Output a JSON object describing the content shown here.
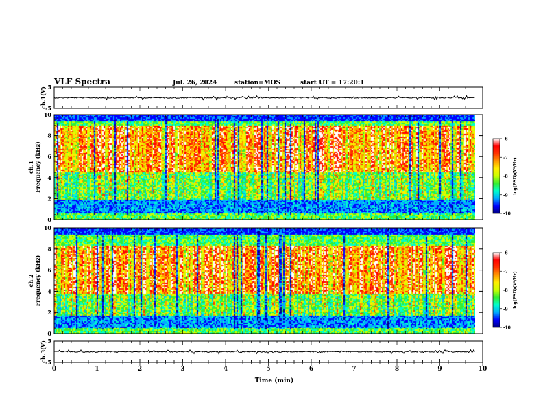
{
  "header": {
    "title": "VLF Spectra",
    "date": "Jul. 26, 2024",
    "station": "station=MOS",
    "start": "start UT = 17:20:1"
  },
  "chart_data": [
    {
      "type": "line",
      "name": "ch1-waveform",
      "ylabel": "ch.1(V)",
      "ylim": [
        -5,
        5
      ],
      "yticks": [
        "5",
        "-5"
      ],
      "x_range": [
        0,
        9.83
      ]
    },
    {
      "type": "heatmap",
      "name": "ch1-spectrogram",
      "ylabel": "ch.1 Frequency (kHz)",
      "ylim": [
        0,
        10
      ],
      "yticks": [
        "0",
        "2",
        "4",
        "6",
        "8",
        "10"
      ],
      "colorbar": {
        "label": "log(PSD)(V²/Hz)",
        "range": [
          -10,
          -6
        ],
        "ticks": [
          "-6",
          "-7",
          "-8",
          "-9",
          "-10"
        ],
        "colors": [
          "#000080",
          "#0000ff",
          "#00aaff",
          "#00ffcc",
          "#33ee33",
          "#ccff00",
          "#ffee00",
          "#ff9900",
          "#ff3300",
          "#ff0000",
          "#ffffff"
        ]
      },
      "bands_kHz": {
        "strong": [
          4.6,
          9.0
        ],
        "weak_hiss": [
          2.0,
          4.6
        ]
      }
    },
    {
      "type": "heatmap",
      "name": "ch2-spectrogram",
      "ylabel": "ch.2 Frequency (kHz)",
      "ylim": [
        0,
        10
      ],
      "yticks": [
        "0",
        "2",
        "4",
        "6",
        "8",
        "10"
      ],
      "colorbar": {
        "label": "log(PSD)(V²/Hz)",
        "range": [
          -10,
          -6
        ],
        "ticks": [
          "-6",
          "-7",
          "-8",
          "-9",
          "-10"
        ],
        "colors": [
          "#000080",
          "#0000ff",
          "#00aaff",
          "#00ffcc",
          "#33ee33",
          "#ccff00",
          "#ffee00",
          "#ff9900",
          "#ff3300",
          "#ff0000",
          "#ffffff"
        ]
      },
      "bands_kHz": {
        "strong": [
          3.8,
          8.4
        ],
        "weak_hiss": [
          1.8,
          3.8
        ]
      }
    },
    {
      "type": "line",
      "name": "ch3-waveform",
      "ylabel": "ch.3(V)",
      "ylim": [
        -5,
        5
      ],
      "yticks": [
        "5",
        "-5"
      ],
      "x_range": [
        0,
        9.83
      ]
    }
  ],
  "x_axis": {
    "label": "Time (min)",
    "xlim": [
      0,
      10
    ],
    "ticks": [
      "0",
      "1",
      "2",
      "3",
      "4",
      "5",
      "6",
      "7",
      "8",
      "9",
      "10"
    ],
    "data_end": 9.83
  }
}
